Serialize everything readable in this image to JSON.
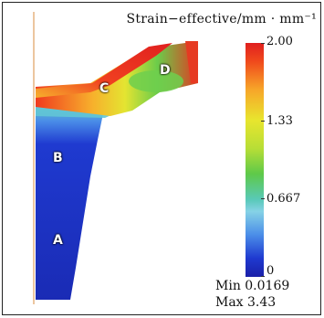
{
  "title": "Strain−effective/mm · mm⁻¹",
  "legend": {
    "ticks": [
      "2.00",
      "1.33",
      "0.667",
      "0"
    ],
    "min_text": "Min 0.0169",
    "max_text": "Max 3.43"
  },
  "regions": [
    "A",
    "B",
    "C",
    "D"
  ],
  "colors": {
    "high": "#e01f1f",
    "mid": "#e8e52e",
    "low_mid": "#59c9b8",
    "low": "#1f3ad0",
    "axis_line": "#e0a060"
  }
}
